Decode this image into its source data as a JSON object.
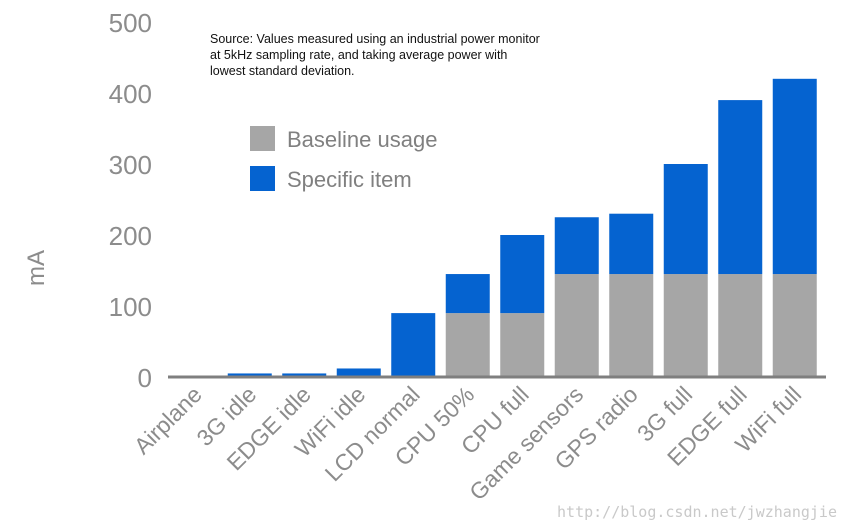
{
  "chart_data": {
    "type": "bar",
    "stacked": true,
    "categories": [
      "Airplane",
      "3G idle",
      "EDGE idle",
      "WiFi idle",
      "LCD normal",
      "CPU 50%",
      "CPU full",
      "Game sensors",
      "GPS radio",
      "3G full",
      "EDGE full",
      "WiFi full"
    ],
    "series": [
      {
        "name": "Baseline usage",
        "color": "#a6a6a6",
        "values": [
          0,
          0,
          0,
          0,
          0,
          90,
          90,
          145,
          145,
          145,
          145,
          145
        ]
      },
      {
        "name": "Specific item",
        "color": "#0563d0",
        "values": [
          2,
          5,
          5,
          12,
          90,
          55,
          110,
          80,
          85,
          155,
          245,
          275
        ]
      }
    ],
    "ylabel": "mA",
    "ylim": [
      0,
      500
    ],
    "yticks": [
      0,
      100,
      200,
      300,
      400,
      500
    ],
    "legend_position": "top-left",
    "grid": false
  },
  "annotation": "Source: Values measured using an industrial power monitor at 5kHz sampling rate, and taking average power with lowest standard deviation.",
  "watermark": "http://blog.csdn.net/jwzhangjie",
  "colors": {
    "axis": "#7f7f7f",
    "tick_text": "#8c8c8c",
    "legend_text": "#808080"
  }
}
